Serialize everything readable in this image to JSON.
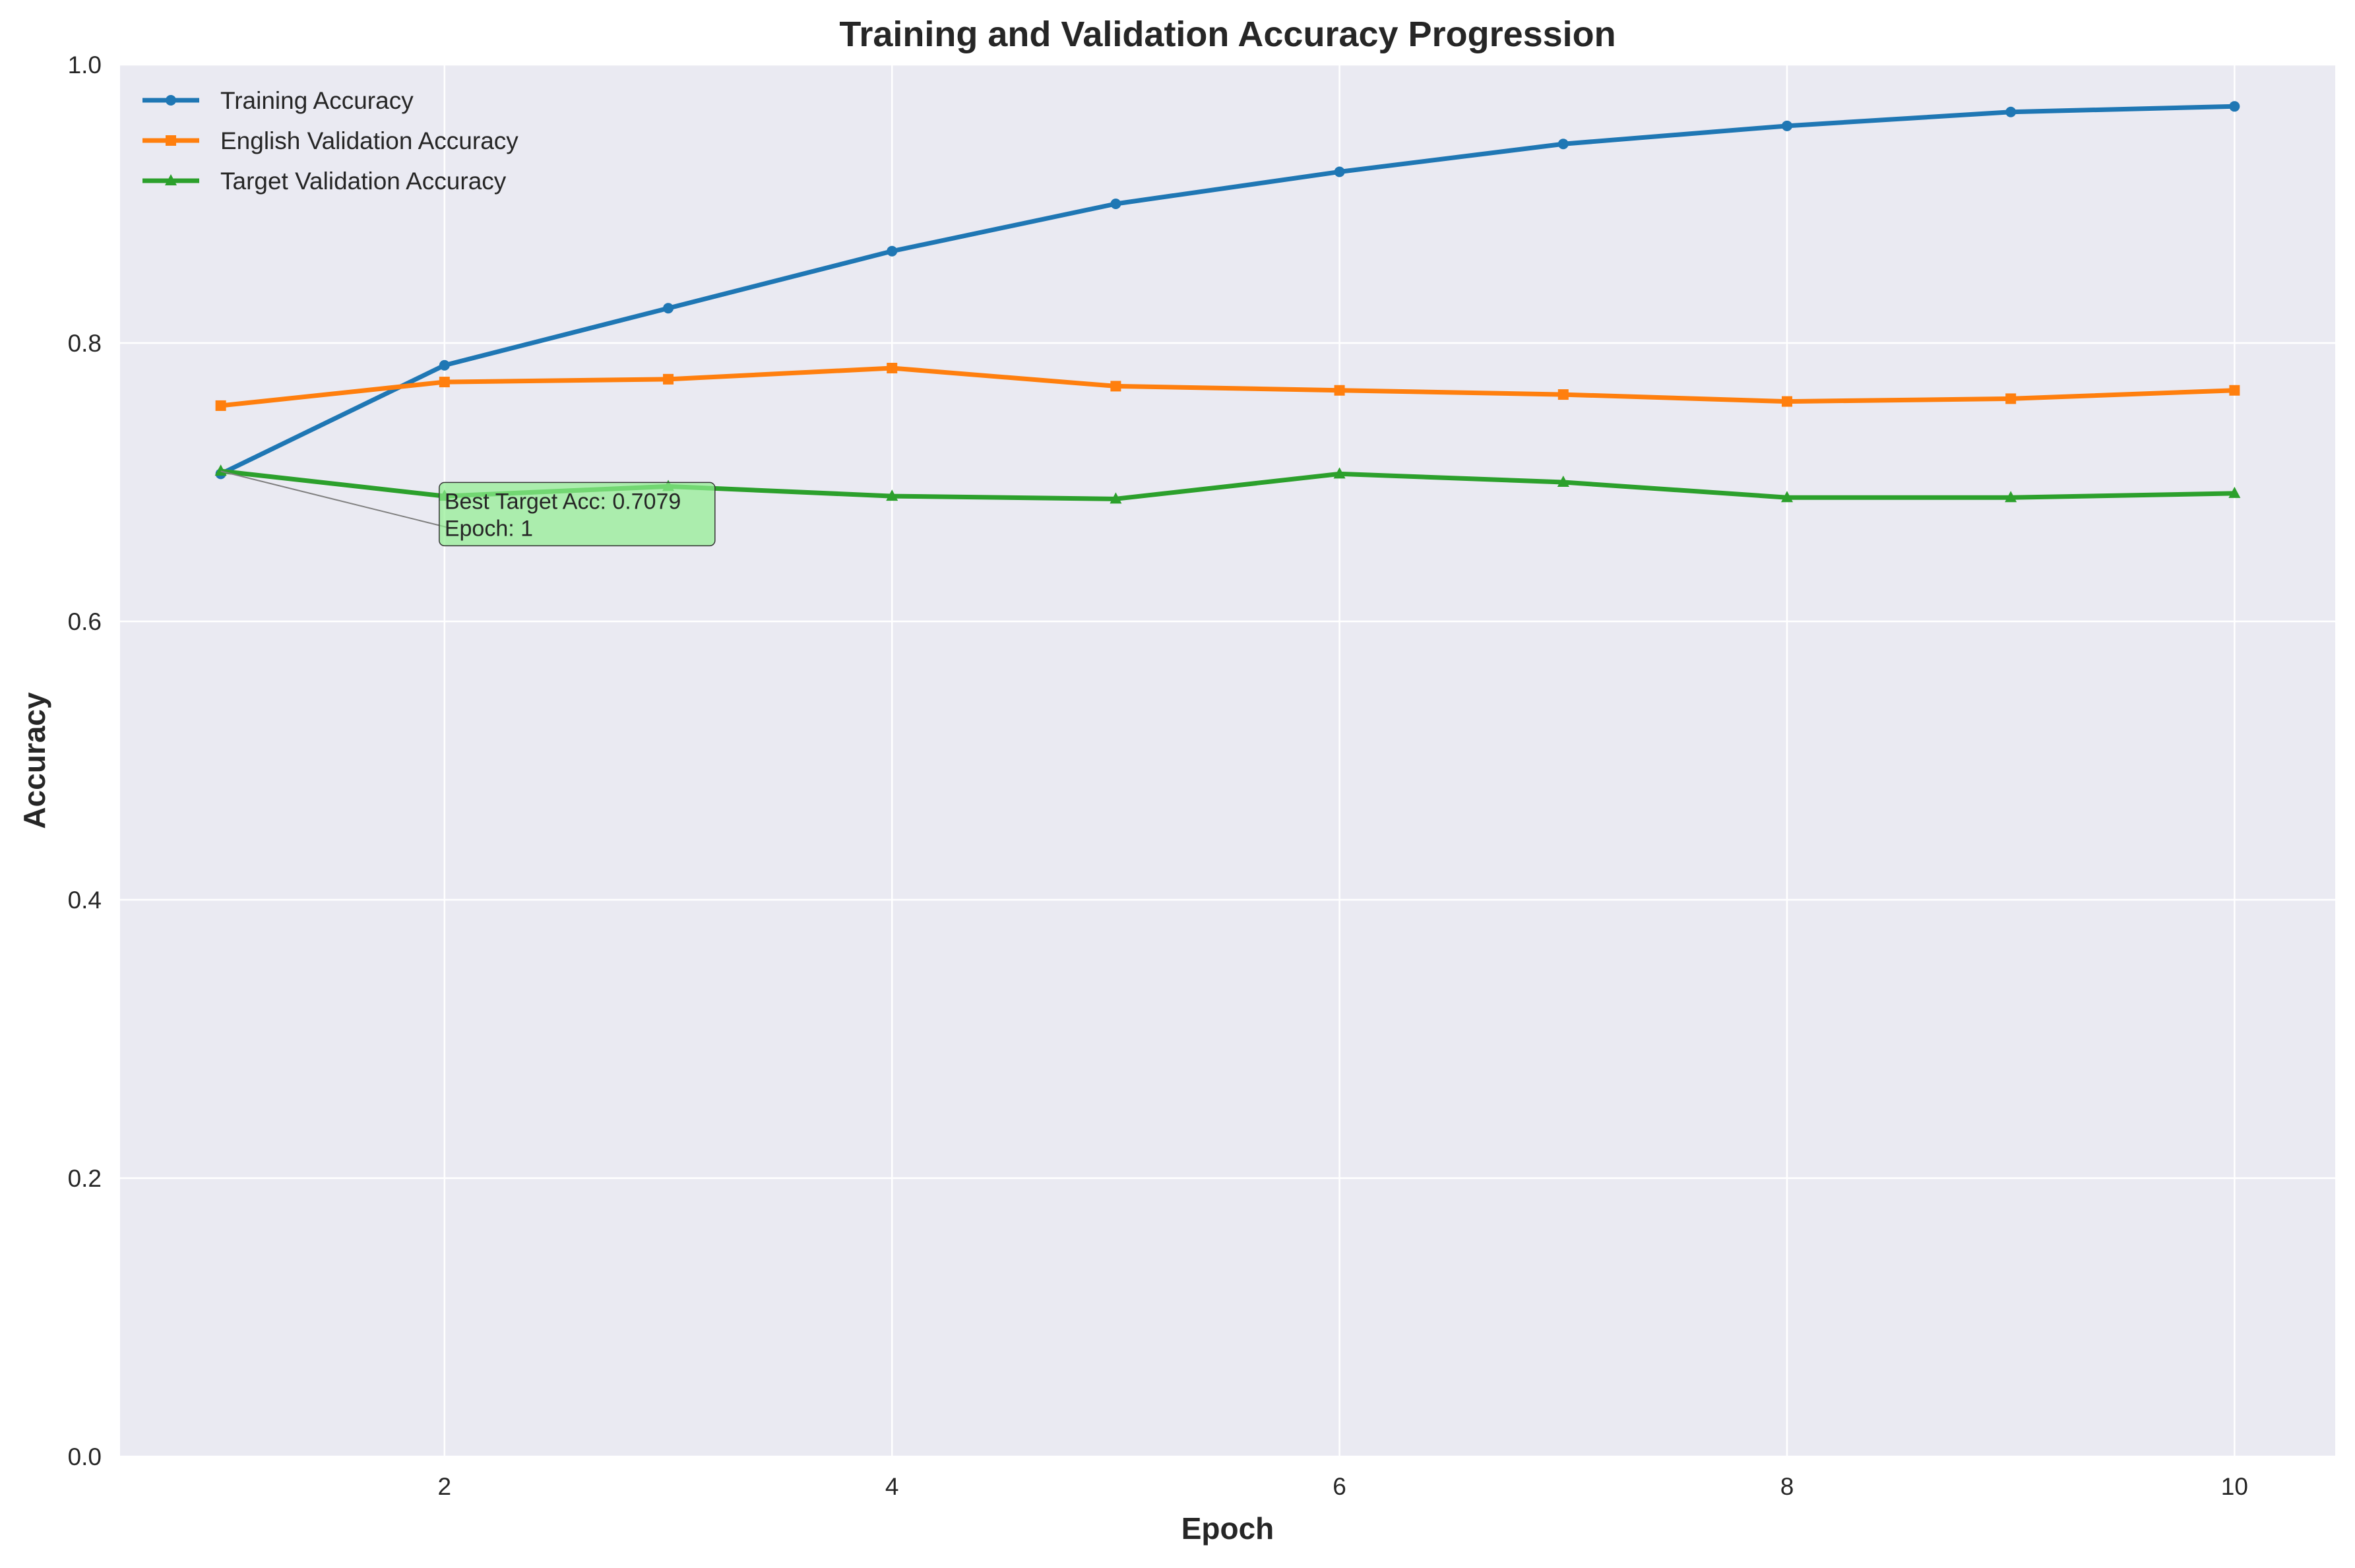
{
  "chart_data": {
    "type": "line",
    "title": "Training and Validation Accuracy Progression",
    "xlabel": "Epoch",
    "ylabel": "Accuracy",
    "xlim": [
      0.55,
      10.45
    ],
    "ylim": [
      0.0,
      1.0
    ],
    "x_ticks": [
      2,
      4,
      6,
      8,
      10
    ],
    "x_tick_labels": [
      "2",
      "4",
      "6",
      "8",
      "10"
    ],
    "y_ticks": [
      0.0,
      0.2,
      0.4,
      0.6,
      0.8,
      1.0
    ],
    "y_tick_labels": [
      "0.0",
      "0.2",
      "0.4",
      "0.6",
      "0.8",
      "1.0"
    ],
    "grid": true,
    "legend_position": "upper-left",
    "x": [
      1,
      2,
      3,
      4,
      5,
      6,
      7,
      8,
      9,
      10
    ],
    "series": [
      {
        "name": "Training Accuracy",
        "color": "#1f77b4",
        "marker": "circle",
        "values": [
          0.706,
          0.784,
          0.825,
          0.866,
          0.9,
          0.923,
          0.943,
          0.956,
          0.966,
          0.97
        ]
      },
      {
        "name": "English Validation Accuracy",
        "color": "#ff7f0e",
        "marker": "square",
        "values": [
          0.755,
          0.772,
          0.774,
          0.782,
          0.769,
          0.766,
          0.763,
          0.758,
          0.76,
          0.766
        ]
      },
      {
        "name": "Target Validation Accuracy",
        "color": "#2ca02c",
        "marker": "triangle",
        "values": [
          0.708,
          0.69,
          0.697,
          0.69,
          0.688,
          0.706,
          0.7,
          0.689,
          0.689,
          0.692
        ]
      }
    ],
    "annotation": {
      "line1": "Best Target Acc: 0.7079",
      "line2": "Epoch: 1",
      "point_x": 1,
      "point_y": 0.7079,
      "text_x": 2,
      "text_y": 0.66,
      "box_color": "#90ee90"
    },
    "colors": {
      "plot_background": "#eaeaf2",
      "grid": "#ffffff",
      "text": "#262626"
    }
  }
}
